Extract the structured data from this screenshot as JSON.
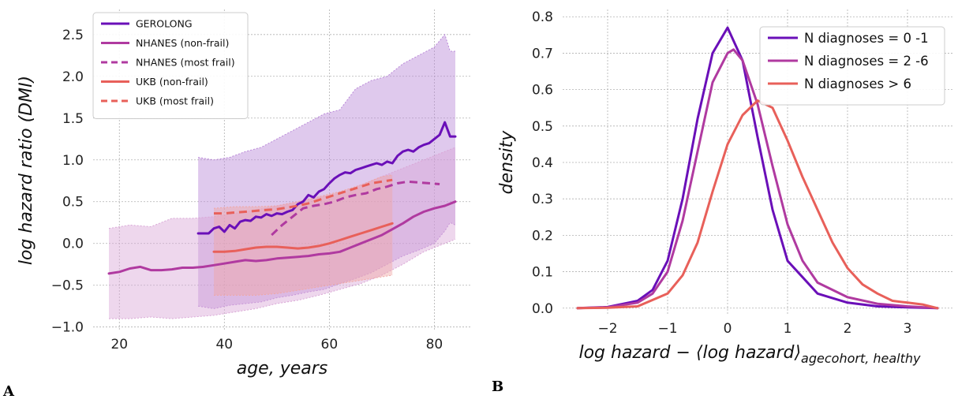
{
  "panels": {
    "a_letter": "A",
    "b_letter": "B"
  },
  "chart_data": [
    {
      "type": "line",
      "panel": "A",
      "xlabel": "age, years",
      "ylabel": "log hazard ratio (DMI)",
      "xlim": [
        15,
        87
      ],
      "ylim": [
        -1.05,
        2.8
      ],
      "xticks": [
        20,
        40,
        60,
        80
      ],
      "yticks": [
        -1.0,
        -0.5,
        0.0,
        0.5,
        1.0,
        1.5,
        2.0,
        2.5
      ],
      "ytick_labels": [
        "−1.0",
        "−0.5",
        "0.0",
        "0.5",
        "1.0",
        "1.5",
        "2.0",
        "2.5"
      ],
      "grid": true,
      "legend_position": "top-left",
      "colors": {
        "gerolong": "#6a0fb8",
        "nhanes": "#b03aa0",
        "ukb": "#e8605a",
        "band_gerolong": "#b988d8",
        "band_nhanes": "#d9a6d6",
        "band_ukb": "#f0a7a3"
      },
      "series": [
        {
          "name": "GEROLONG",
          "style": "solid",
          "color": "#6a0fb8",
          "x": [
            35,
            36,
            37,
            38,
            39,
            40,
            41,
            42,
            43,
            44,
            45,
            46,
            47,
            48,
            49,
            50,
            51,
            52,
            53,
            54,
            55,
            56,
            57,
            58,
            59,
            60,
            61,
            62,
            63,
            64,
            65,
            66,
            67,
            68,
            69,
            70,
            71,
            72,
            73,
            74,
            75,
            76,
            77,
            78,
            79,
            80,
            81,
            82,
            83,
            84
          ],
          "y": [
            0.12,
            0.12,
            0.12,
            0.18,
            0.2,
            0.14,
            0.22,
            0.18,
            0.26,
            0.28,
            0.27,
            0.32,
            0.31,
            0.35,
            0.33,
            0.36,
            0.35,
            0.38,
            0.4,
            0.47,
            0.5,
            0.58,
            0.55,
            0.62,
            0.65,
            0.72,
            0.78,
            0.82,
            0.85,
            0.84,
            0.88,
            0.9,
            0.92,
            0.94,
            0.96,
            0.94,
            0.98,
            0.96,
            1.05,
            1.1,
            1.12,
            1.1,
            1.15,
            1.18,
            1.2,
            1.25,
            1.3,
            1.45,
            1.28,
            1.28
          ]
        },
        {
          "name": "NHANES (non-frail)",
          "style": "solid",
          "color": "#b03aa0",
          "x": [
            18,
            20,
            22,
            24,
            26,
            28,
            30,
            32,
            34,
            36,
            38,
            40,
            42,
            44,
            46,
            48,
            50,
            52,
            54,
            56,
            58,
            60,
            62,
            64,
            66,
            68,
            70,
            72,
            74,
            76,
            78,
            80,
            82,
            84
          ],
          "y": [
            -0.36,
            -0.34,
            -0.3,
            -0.28,
            -0.32,
            -0.32,
            -0.31,
            -0.29,
            -0.29,
            -0.28,
            -0.26,
            -0.24,
            -0.22,
            -0.2,
            -0.21,
            -0.2,
            -0.18,
            -0.17,
            -0.16,
            -0.15,
            -0.13,
            -0.12,
            -0.1,
            -0.05,
            0.0,
            0.05,
            0.1,
            0.17,
            0.24,
            0.32,
            0.38,
            0.42,
            0.45,
            0.5
          ]
        },
        {
          "name": "NHANES (most frail)",
          "style": "dashed",
          "color": "#b03aa0",
          "x": [
            49,
            51,
            53,
            55,
            57,
            59,
            61,
            63,
            65,
            67,
            69,
            71,
            73,
            75,
            77,
            79,
            81
          ],
          "y": [
            0.1,
            0.22,
            0.32,
            0.42,
            0.45,
            0.47,
            0.5,
            0.55,
            0.58,
            0.6,
            0.65,
            0.68,
            0.72,
            0.74,
            0.73,
            0.72,
            0.71
          ]
        },
        {
          "name": "UKB (non-frail)",
          "style": "solid",
          "color": "#e8605a",
          "x": [
            38,
            40,
            42,
            44,
            46,
            48,
            50,
            52,
            54,
            56,
            58,
            60,
            62,
            64,
            66,
            68,
            70,
            72
          ],
          "y": [
            -0.1,
            -0.1,
            -0.09,
            -0.07,
            -0.05,
            -0.04,
            -0.04,
            -0.05,
            -0.06,
            -0.05,
            -0.03,
            0.0,
            0.04,
            0.08,
            0.12,
            0.16,
            0.2,
            0.24
          ]
        },
        {
          "name": "UKB (most frail)",
          "style": "dashed",
          "color": "#e8605a",
          "x": [
            38,
            40,
            42,
            44,
            46,
            48,
            50,
            52,
            54,
            56,
            58,
            60,
            62,
            64,
            66,
            68,
            70,
            72
          ],
          "y": [
            0.36,
            0.36,
            0.37,
            0.38,
            0.39,
            0.4,
            0.41,
            0.43,
            0.45,
            0.48,
            0.52,
            0.56,
            0.6,
            0.64,
            0.68,
            0.72,
            0.74,
            0.76
          ]
        }
      ],
      "bands": [
        {
          "series": "GEROLONG",
          "color": "#b988d8",
          "x": [
            35,
            38,
            41,
            44,
            47,
            50,
            53,
            56,
            59,
            62,
            65,
            68,
            71,
            74,
            77,
            80,
            82,
            83,
            84
          ],
          "upper": [
            1.03,
            1.0,
            1.03,
            1.1,
            1.15,
            1.25,
            1.35,
            1.45,
            1.55,
            1.6,
            1.85,
            1.95,
            2.0,
            2.15,
            2.25,
            2.35,
            2.5,
            2.3,
            2.3
          ],
          "lower": [
            -0.75,
            -0.78,
            -0.74,
            -0.72,
            -0.7,
            -0.65,
            -0.62,
            -0.58,
            -0.55,
            -0.48,
            -0.42,
            -0.35,
            -0.25,
            -0.15,
            -0.08,
            0.0,
            0.15,
            0.25,
            0.22
          ]
        },
        {
          "series": "NHANES",
          "color": "#d9a6d6",
          "x": [
            18,
            22,
            26,
            30,
            34,
            38,
            42,
            46,
            50,
            54,
            58,
            62,
            66,
            70,
            74,
            78,
            82,
            84
          ],
          "upper": [
            0.18,
            0.22,
            0.2,
            0.3,
            0.3,
            0.32,
            0.36,
            0.4,
            0.45,
            0.5,
            0.55,
            0.6,
            0.7,
            0.8,
            0.9,
            1.0,
            1.1,
            1.15
          ],
          "lower": [
            -0.9,
            -0.9,
            -0.88,
            -0.9,
            -0.88,
            -0.86,
            -0.82,
            -0.78,
            -0.72,
            -0.68,
            -0.62,
            -0.55,
            -0.48,
            -0.38,
            -0.25,
            -0.1,
            0.0,
            0.05
          ]
        },
        {
          "series": "UKB",
          "color": "#f0a7a3",
          "x": [
            38,
            42,
            46,
            50,
            54,
            58,
            62,
            66,
            70,
            72
          ],
          "upper": [
            0.42,
            0.44,
            0.44,
            0.45,
            0.5,
            0.56,
            0.62,
            0.7,
            0.8,
            0.82
          ],
          "lower": [
            -0.62,
            -0.62,
            -0.62,
            -0.6,
            -0.56,
            -0.52,
            -0.48,
            -0.44,
            -0.4,
            -0.38
          ]
        }
      ]
    },
    {
      "type": "line",
      "panel": "B",
      "xlabel": "log hazard − ⟨log hazard⟩",
      "xlabel_subscript": "agecohort, healthy",
      "ylabel": "density",
      "xlim": [
        -2.75,
        3.75
      ],
      "ylim": [
        -0.02,
        0.82
      ],
      "xticks": [
        -2,
        -1,
        0,
        1,
        2,
        3
      ],
      "xtick_labels": [
        "−2",
        "−1",
        "0",
        "1",
        "2",
        "3"
      ],
      "yticks": [
        0.0,
        0.1,
        0.2,
        0.3,
        0.4,
        0.5,
        0.6,
        0.7,
        0.8
      ],
      "grid": true,
      "legend_position": "top-right",
      "series": [
        {
          "name": "N diagnoses = 0 -1",
          "color": "#6a0fb8",
          "x": [
            -2.5,
            -2.0,
            -1.5,
            -1.25,
            -1.0,
            -0.75,
            -0.5,
            -0.25,
            0.0,
            0.25,
            0.5,
            0.75,
            1.0,
            1.5,
            2.0,
            2.5,
            3.0,
            3.5
          ],
          "y": [
            0.0,
            0.003,
            0.02,
            0.05,
            0.13,
            0.3,
            0.52,
            0.7,
            0.77,
            0.68,
            0.47,
            0.27,
            0.13,
            0.04,
            0.015,
            0.005,
            0.002,
            0.0
          ]
        },
        {
          "name": "N diagnoses = 2 -6",
          "color": "#b03aa0",
          "x": [
            -2.5,
            -2.0,
            -1.5,
            -1.25,
            -1.0,
            -0.75,
            -0.5,
            -0.25,
            0.0,
            0.1,
            0.25,
            0.5,
            0.75,
            1.0,
            1.25,
            1.5,
            2.0,
            2.5,
            3.0,
            3.5
          ],
          "y": [
            0.0,
            0.002,
            0.015,
            0.04,
            0.1,
            0.24,
            0.43,
            0.62,
            0.7,
            0.71,
            0.68,
            0.56,
            0.39,
            0.23,
            0.13,
            0.07,
            0.03,
            0.012,
            0.005,
            0.0
          ]
        },
        {
          "name": "N diagnoses > 6",
          "color": "#e8605a",
          "x": [
            -2.5,
            -2.0,
            -1.5,
            -1.0,
            -0.75,
            -0.5,
            -0.25,
            0.0,
            0.25,
            0.5,
            0.75,
            1.0,
            1.25,
            1.5,
            1.75,
            2.0,
            2.25,
            2.5,
            2.75,
            3.0,
            3.25,
            3.5
          ],
          "y": [
            0.0,
            0.001,
            0.005,
            0.04,
            0.09,
            0.18,
            0.32,
            0.45,
            0.53,
            0.57,
            0.55,
            0.46,
            0.36,
            0.27,
            0.18,
            0.11,
            0.065,
            0.04,
            0.02,
            0.015,
            0.01,
            0.0
          ]
        }
      ]
    }
  ]
}
